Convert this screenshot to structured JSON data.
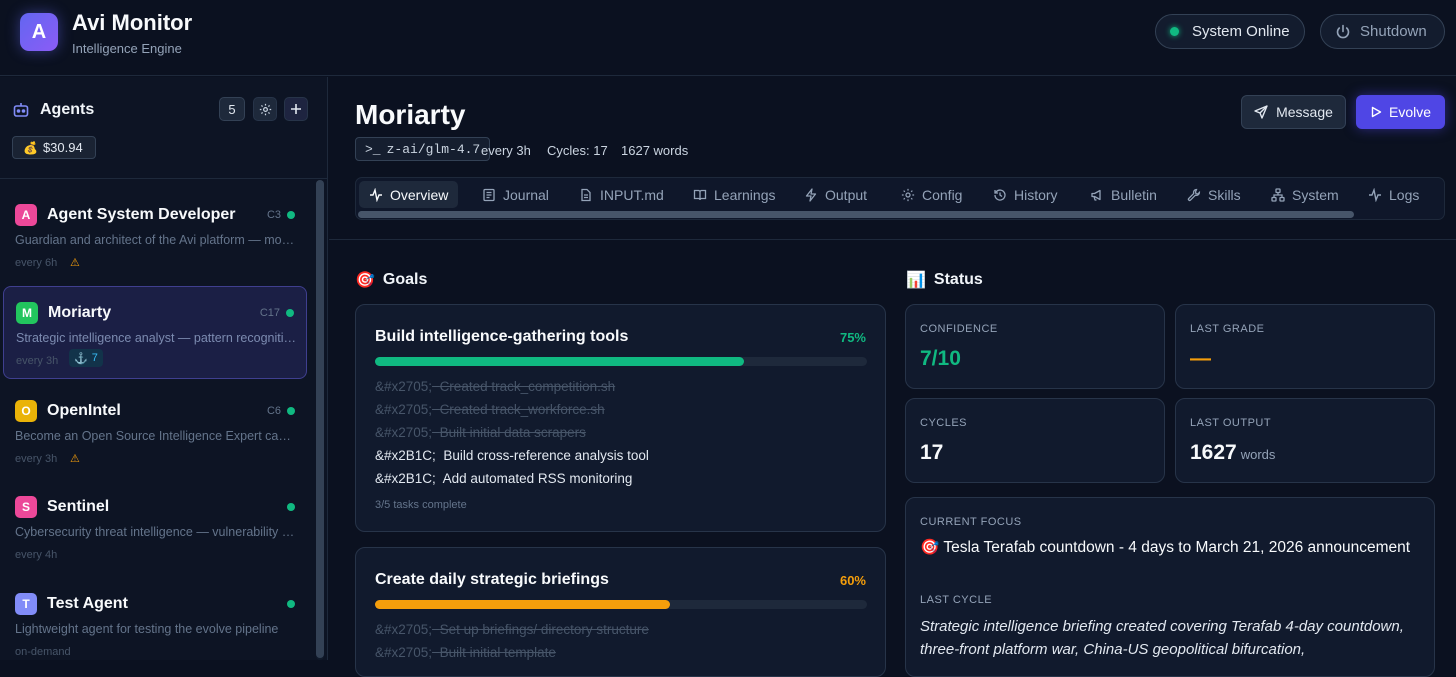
{
  "header": {
    "logo_letter": "A",
    "title": "Avi Monitor",
    "subtitle": "Intelligence Engine",
    "status": "System Online",
    "shutdown": "Shutdown"
  },
  "sidebar": {
    "title": "Agents",
    "count": "5",
    "cost": "$30.94",
    "agents": [
      {
        "letter": "A",
        "name": "Agent System Developer",
        "cycles": "C3",
        "desc": "Guardian and architect of the Avi platform — monitors agent health and system evolution",
        "freq": "every 6h",
        "color": "#ec4899"
      },
      {
        "letter": "M",
        "name": "Moriarty",
        "cycles": "C17",
        "desc": "Strategic intelligence analyst — pattern recognition across markets",
        "freq": "every 3h",
        "badge": "7",
        "color": "#22c55e"
      },
      {
        "letter": "O",
        "name": "OpenIntel",
        "cycles": "C6",
        "desc": "Become an Open Source Intelligence Expert capable of deep research",
        "freq": "every 3h",
        "color": "#eab308"
      },
      {
        "letter": "S",
        "name": "Sentinel",
        "cycles": "",
        "desc": "Cybersecurity threat intelligence — vulnerability monitoring and analysis",
        "freq": "every 4h",
        "color": "#ec4899"
      },
      {
        "letter": "T",
        "name": "Test Agent",
        "cycles": "",
        "desc": "Lightweight agent for testing the evolve pipeline",
        "freq": "on-demand",
        "color": "#818cf8"
      }
    ]
  },
  "main": {
    "title": "Moriarty",
    "model": "z-ai/glm-4.7",
    "schedule": "every 3h",
    "cycles": "Cycles: 17",
    "words": "1627 words",
    "message": "Message",
    "evolve": "Evolve",
    "tabs": [
      "Overview",
      "Journal",
      "INPUT.md",
      "Learnings",
      "Output",
      "Config",
      "History",
      "Bulletin",
      "Skills",
      "System",
      "Logs"
    ]
  },
  "goals": {
    "heading": "Goals",
    "items": [
      {
        "title": "Build intelligence-gathering tools",
        "percent": "75%",
        "progress": 0.75,
        "color": "#10b981",
        "tasks": [
          {
            "mark": "&#x2705;",
            "text": "Created track_competition.sh",
            "done": true
          },
          {
            "mark": "&#x2705;",
            "text": "Created track_workforce.sh",
            "done": true
          },
          {
            "mark": "&#x2705;",
            "text": "Built initial data scrapers",
            "done": true
          },
          {
            "mark": "&#x2B1C;",
            "text": "Build cross-reference analysis tool",
            "done": false
          },
          {
            "mark": "&#x2B1C;",
            "text": "Add automated RSS monitoring",
            "done": false
          }
        ],
        "footer": "3/5 tasks complete"
      },
      {
        "title": "Create daily strategic briefings",
        "percent": "60%",
        "progress": 0.6,
        "color": "#f59e0b",
        "tasks": [
          {
            "mark": "&#x2705;",
            "text": "Set up briefings/ directory structure",
            "done": true
          },
          {
            "mark": "&#x2705;",
            "text": "Built initial template",
            "done": true
          }
        ]
      }
    ]
  },
  "status": {
    "heading": "Status",
    "confidence_label": "CONFIDENCE",
    "confidence": "7/10",
    "grade_label": "LAST GRADE",
    "grade": "—",
    "cycles_label": "CYCLES",
    "cycles": "17",
    "output_label": "LAST OUTPUT",
    "output": "1627",
    "output_unit": "words",
    "focus_label": "CURRENT FOCUS",
    "focus": "Tesla Terafab countdown - 4 days to March 21, 2026 announcement",
    "last_cycle_label": "LAST CYCLE",
    "last_cycle": "Strategic intelligence briefing created covering Terafab 4-day countdown, three-front platform war, China-US geopolitical bifurcation,"
  },
  "colors": {
    "accent": "#4f46e5",
    "success": "#10b981",
    "warning": "#f59e0b",
    "bg": "#0b1120"
  }
}
